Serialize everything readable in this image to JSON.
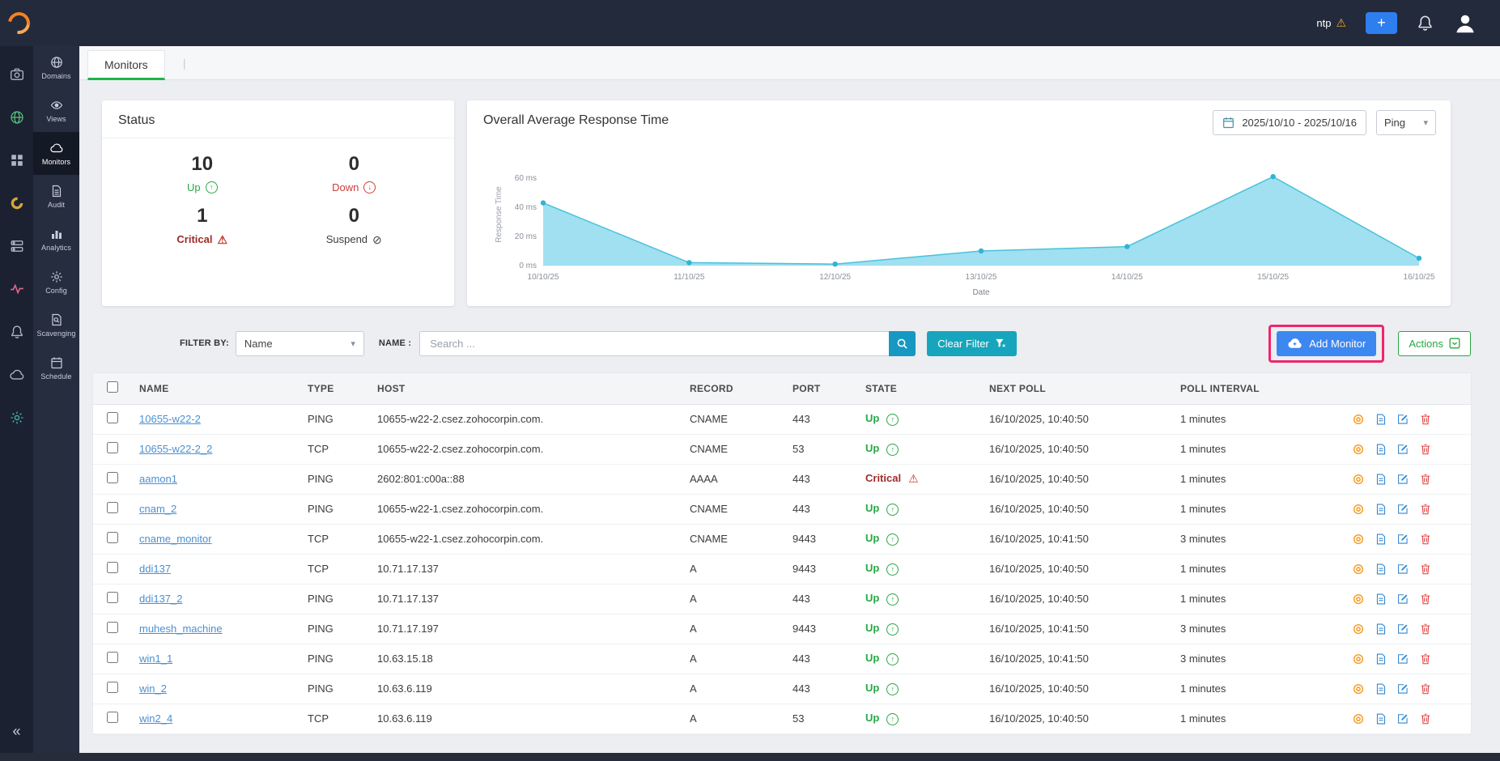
{
  "icons": {
    "warning": "⚠",
    "up_arrow": "↑",
    "down_arrow": "↓",
    "suspend": "⊘",
    "caret_down": "▾",
    "collapse": "«",
    "bullseye": "◎"
  },
  "topbar": {
    "ntp_label": "ntp",
    "add_button": "+"
  },
  "sidebar": {
    "rail": [
      {
        "icon": "dashboard-icon",
        "color": "#aeb6c6"
      },
      {
        "icon": "network-globe-icon",
        "color": "#56b87b"
      },
      {
        "icon": "grid-icon",
        "color": "#aeb6c6"
      },
      {
        "icon": "usage-donut-icon",
        "color": "#d8a43c"
      },
      {
        "icon": "servers-icon",
        "color": "#aeb6c6"
      },
      {
        "icon": "activity-pulse-icon",
        "color": "#e2688f"
      },
      {
        "icon": "alerts-bell-icon",
        "color": "#aeb6c6"
      },
      {
        "icon": "cloud-icon",
        "color": "#aeb6c6"
      },
      {
        "icon": "settings-gear-icon",
        "color": "#3fb5ae"
      }
    ],
    "items": [
      {
        "label": "Domains",
        "icon": "domains-globe-icon",
        "active": false
      },
      {
        "label": "Views",
        "icon": "views-eye-icon",
        "active": false
      },
      {
        "label": "Monitors",
        "icon": "monitors-cloud-icon",
        "active": true
      },
      {
        "label": "Audit",
        "icon": "audit-doc-icon",
        "active": false
      },
      {
        "label": "Analytics",
        "icon": "analytics-chart-icon",
        "active": false
      },
      {
        "label": "Config",
        "icon": "config-gear-icon",
        "active": false
      },
      {
        "label": "Scavenging",
        "icon": "scavenging-search-icon",
        "active": false
      },
      {
        "label": "Schedule",
        "icon": "schedule-calendar-icon",
        "active": false
      }
    ]
  },
  "tab": {
    "label": "Monitors"
  },
  "status_card": {
    "title": "Status",
    "stats": [
      {
        "value": "10",
        "label": "Up",
        "state": "up"
      },
      {
        "value": "0",
        "label": "Down",
        "state": "down"
      },
      {
        "value": "1",
        "label": "Critical",
        "state": "critical"
      },
      {
        "value": "0",
        "label": "Suspend",
        "state": "suspend"
      }
    ]
  },
  "chart_card": {
    "title": "Overall Average Response Time",
    "date_range": "2025/10/10 - 2025/10/16",
    "type_selected": "Ping"
  },
  "chart_data": {
    "type": "area",
    "title": "Overall Average Response Time",
    "x": [
      "10/10/25",
      "11/10/25",
      "12/10/25",
      "13/10/25",
      "14/10/25",
      "15/10/25",
      "16/10/25"
    ],
    "values": [
      43,
      2,
      1,
      10,
      13,
      61,
      5
    ],
    "xlabel": "Date",
    "ylabel": "Response Time",
    "yticks": [
      0,
      20,
      40,
      60
    ],
    "ytick_suffix": " ms",
    "ylim": [
      0,
      70
    ],
    "fill_color": "#8fdbed",
    "line_color": "#49c2dd",
    "dot_color": "#2fb4d4",
    "grid": false,
    "legend": false
  },
  "filter_bar": {
    "filter_by_label": "FILTER BY:",
    "filter_by_value": "Name",
    "name_label": "NAME :",
    "search_placeholder": "Search ...",
    "clear_filter_label": "Clear Filter",
    "add_monitor_label": "Add Monitor",
    "actions_label": "Actions",
    "highlight_color": "#f0256b"
  },
  "table": {
    "headers": [
      "NAME",
      "TYPE",
      "HOST",
      "RECORD",
      "PORT",
      "STATE",
      "NEXT POLL",
      "POLL INTERVAL"
    ],
    "rows": [
      {
        "name": "10655-w22-2",
        "type": "PING",
        "host": "10655-w22-2.csez.zohocorpin.com.",
        "record": "CNAME",
        "port": "443",
        "state": "Up",
        "next_poll": "16/10/2025, 10:40:50",
        "poll_interval": "1 minutes"
      },
      {
        "name": "10655-w22-2_2",
        "type": "TCP",
        "host": "10655-w22-2.csez.zohocorpin.com.",
        "record": "CNAME",
        "port": "53",
        "state": "Up",
        "next_poll": "16/10/2025, 10:40:50",
        "poll_interval": "1 minutes"
      },
      {
        "name": "aamon1",
        "type": "PING",
        "host": "2602:801:c00a::88",
        "record": "AAAA",
        "port": "443",
        "state": "Critical",
        "next_poll": "16/10/2025, 10:40:50",
        "poll_interval": "1 minutes"
      },
      {
        "name": "cnam_2",
        "type": "PING",
        "host": "10655-w22-1.csez.zohocorpin.com.",
        "record": "CNAME",
        "port": "443",
        "state": "Up",
        "next_poll": "16/10/2025, 10:40:50",
        "poll_interval": "1 minutes"
      },
      {
        "name": "cname_monitor",
        "type": "TCP",
        "host": "10655-w22-1.csez.zohocorpin.com.",
        "record": "CNAME",
        "port": "9443",
        "state": "Up",
        "next_poll": "16/10/2025, 10:41:50",
        "poll_interval": "3 minutes"
      },
      {
        "name": "ddi137",
        "type": "TCP",
        "host": "10.71.17.137",
        "record": "A",
        "port": "9443",
        "state": "Up",
        "next_poll": "16/10/2025, 10:40:50",
        "poll_interval": "1 minutes"
      },
      {
        "name": "ddi137_2",
        "type": "PING",
        "host": "10.71.17.137",
        "record": "A",
        "port": "443",
        "state": "Up",
        "next_poll": "16/10/2025, 10:40:50",
        "poll_interval": "1 minutes"
      },
      {
        "name": "muhesh_machine",
        "type": "PING",
        "host": "10.71.17.197",
        "record": "A",
        "port": "9443",
        "state": "Up",
        "next_poll": "16/10/2025, 10:41:50",
        "poll_interval": "3 minutes"
      },
      {
        "name": "win1_1",
        "type": "PING",
        "host": "10.63.15.18",
        "record": "A",
        "port": "443",
        "state": "Up",
        "next_poll": "16/10/2025, 10:41:50",
        "poll_interval": "3 minutes"
      },
      {
        "name": "win_2",
        "type": "PING",
        "host": "10.63.6.119",
        "record": "A",
        "port": "443",
        "state": "Up",
        "next_poll": "16/10/2025, 10:40:50",
        "poll_interval": "1 minutes"
      },
      {
        "name": "win2_4",
        "type": "TCP",
        "host": "10.63.6.119",
        "record": "A",
        "port": "53",
        "state": "Up",
        "next_poll": "16/10/2025, 10:40:50",
        "poll_interval": "1 minutes"
      }
    ]
  }
}
